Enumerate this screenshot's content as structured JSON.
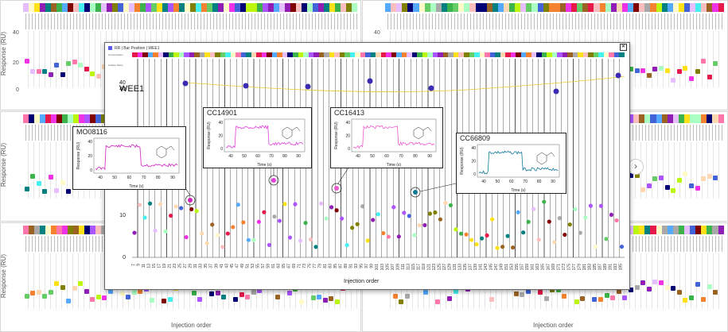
{
  "colors": {
    "magenta": "#e040e0",
    "teal": "#1a7f9a",
    "wee1_dot": "#3a2bb0",
    "trend": "#e8c830",
    "accent": "#5b5be6"
  },
  "background": {
    "ylabel": "Response (RU)",
    "xlabel": "Injection order",
    "yticks_top": [
      "40",
      "20",
      "0"
    ],
    "yticks_right": [
      "40"
    ],
    "next_icon": "chevron-right-icon",
    "next_glyph": "›"
  },
  "modal": {
    "legend_target": "WEE1",
    "legend_text": "RR  |  Bar  Position  |  WEE1",
    "title": "WEE1",
    "row_labels": [
      "Concentration",
      "Analyte Name"
    ],
    "close_glyph": "✕",
    "xlabel": "Injection order",
    "yticks": [
      "40",
      "30",
      "20",
      "10",
      "0"
    ],
    "xticks": [
      "7",
      "9",
      "11",
      "13",
      "15",
      "17",
      "19",
      "21",
      "23",
      "25",
      "27",
      "29",
      "31",
      "33",
      "35",
      "37",
      "39",
      "41",
      "43",
      "45",
      "47",
      "49",
      "51",
      "53",
      "55",
      "57",
      "59",
      "61",
      "63",
      "65",
      "67",
      "69",
      "71",
      "73",
      "75",
      "77",
      "79",
      "81",
      "83",
      "85",
      "87",
      "89",
      "91",
      "93",
      "95",
      "97",
      "99",
      "101",
      "103",
      "105",
      "107",
      "109",
      "111",
      "113",
      "115",
      "117",
      "119",
      "121",
      "123",
      "125",
      "127",
      "129",
      "131",
      "133",
      "135",
      "137",
      "139",
      "141",
      "143",
      "145",
      "147",
      "149",
      "151",
      "153",
      "155",
      "157",
      "159",
      "161",
      "163",
      "165",
      "167",
      "169",
      "171",
      "173",
      "175",
      "177",
      "179",
      "181",
      "183",
      "185",
      "187",
      "189",
      "191",
      "193",
      "195"
    ]
  },
  "insets": [
    {
      "name": "MO08116",
      "ylabel": "Response (RU)",
      "xlabel": "Time (s)",
      "xticks": [
        "40",
        "50",
        "60",
        "70",
        "80",
        "90"
      ],
      "yticks": [
        "40",
        "20",
        "0"
      ],
      "color": "#d020c0"
    },
    {
      "name": "CC14901",
      "ylabel": "Response (RU)",
      "xlabel": "Time (s)",
      "xticks": [
        "40",
        "50",
        "60",
        "70",
        "80",
        "90"
      ],
      "yticks": [
        "40",
        "20",
        "0"
      ],
      "color": "#e040e0"
    },
    {
      "name": "CC16413",
      "ylabel": "Response (RU)",
      "xlabel": "Time (s)",
      "xticks": [
        "40",
        "50",
        "60",
        "70",
        "80",
        "90"
      ],
      "yticks": [
        "40",
        "20",
        "0"
      ],
      "color": "#ee5ad0"
    },
    {
      "name": "CC66809",
      "ylabel": "Response (RU)",
      "xlabel": "Time (s)",
      "xticks": [
        "40",
        "50",
        "60",
        "70",
        "80",
        "90"
      ],
      "yticks": [
        "40",
        "20",
        "0"
      ],
      "color": "#117a9a"
    }
  ]
}
